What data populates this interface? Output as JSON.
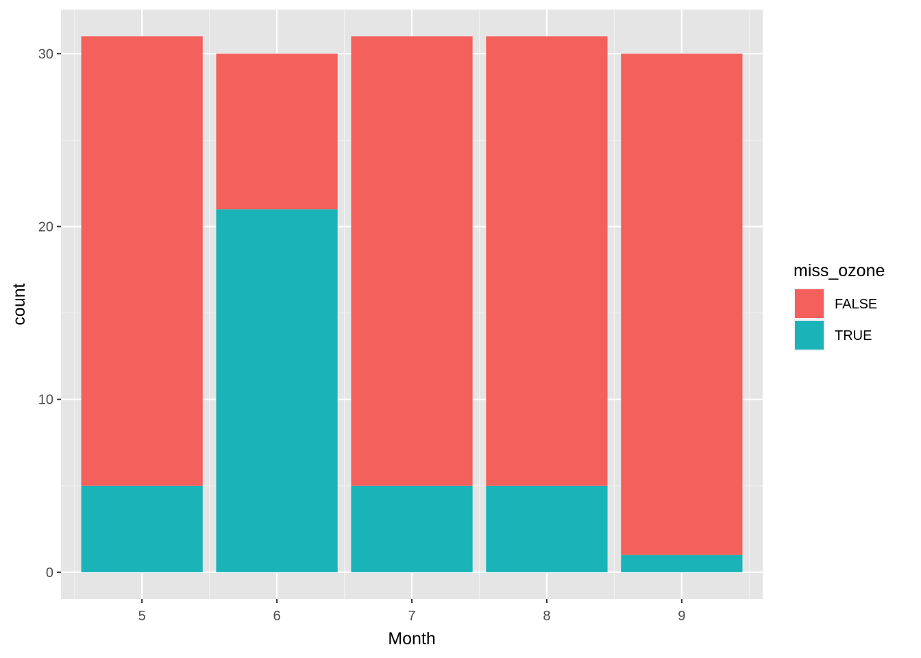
{
  "chart_data": {
    "type": "bar",
    "stacked": true,
    "title": "",
    "xlabel": "Month",
    "ylabel": "count",
    "categories": [
      "5",
      "6",
      "7",
      "8",
      "9"
    ],
    "series": [
      {
        "name": "FALSE",
        "color": "#F4605C",
        "values": [
          26,
          9,
          26,
          26,
          29
        ]
      },
      {
        "name": "TRUE",
        "color": "#1AB4B8",
        "values": [
          5,
          21,
          5,
          5,
          1
        ]
      }
    ],
    "ylim": [
      -1.55,
      32.55
    ],
    "yticks": [
      0,
      10,
      20,
      30
    ],
    "yticklabels": [
      "0",
      "10",
      "20",
      "30"
    ],
    "grid": true,
    "panel_background": "#E5E5E5",
    "legend": {
      "title": "miss_ozone",
      "position": "right",
      "items": [
        "FALSE",
        "TRUE"
      ]
    }
  }
}
